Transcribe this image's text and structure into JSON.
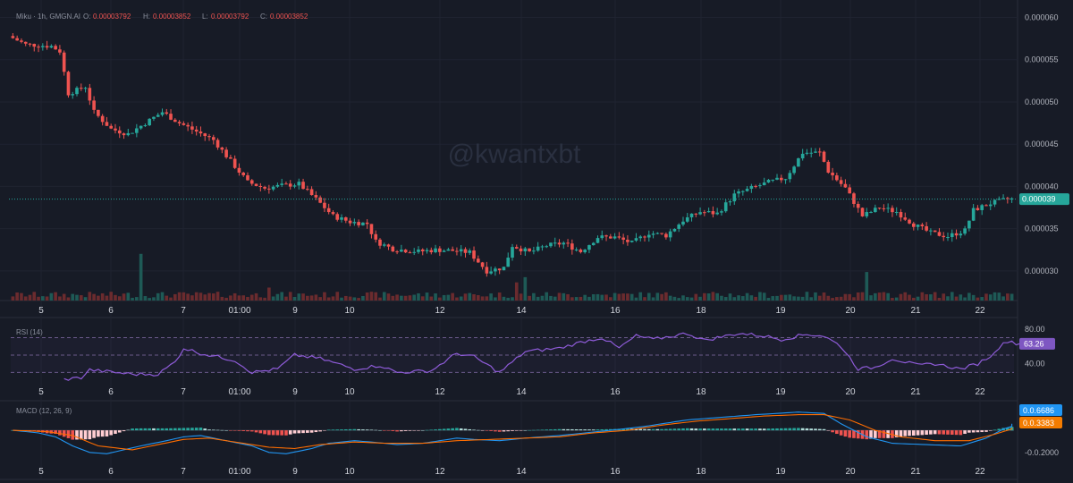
{
  "header": {
    "symbol_line": "Miku · 1h, GMGN.AI",
    "ohlc": [
      {
        "label": "O:",
        "value": "0.00003792"
      },
      {
        "label": "H:",
        "value": "0.00003852"
      },
      {
        "label": "L:",
        "value": "0.00003792"
      },
      {
        "label": "C:",
        "value": "0.00003852"
      }
    ]
  },
  "watermark": "@kwantxbt",
  "colors": {
    "background": "#171b26",
    "up": "#26a69a",
    "down": "#ef5350",
    "rsi_line": "#8e5bd8",
    "macd_line": "#2196f3",
    "signal_line": "#ff6d00",
    "price_badge": "#26a69a",
    "rsi_badge": "#7e57c2",
    "macd_badge": "#2196f3",
    "signal_badge": "#f57c00"
  },
  "time_axis": [
    "5",
    "6",
    "7",
    "01:00",
    "9",
    "10",
    "12",
    "14",
    "16",
    "18",
    "19",
    "20",
    "21",
    "22"
  ],
  "chart_data": [
    {
      "id": "price",
      "type": "candlestick",
      "y_ticks": [
        "0.000060",
        "0.000055",
        "0.000050",
        "0.000045",
        "0.000040",
        "0.000035",
        "0.000030"
      ],
      "ylim": [
        2.65e-05,
        6.1e-05
      ],
      "last_price_label": "0.000039",
      "last_price": 3.85e-05,
      "anchors": [
        [
          0,
          5.78e-05
        ],
        [
          4,
          5.68e-05
        ],
        [
          10,
          5.66e-05
        ],
        [
          12,
          5.6e-05
        ],
        [
          14,
          5.1e-05
        ],
        [
          18,
          5.18e-05
        ],
        [
          20,
          4.88e-05
        ],
        [
          24,
          4.68e-05
        ],
        [
          28,
          4.62e-05
        ],
        [
          32,
          4.75e-05
        ],
        [
          36,
          4.88e-05
        ],
        [
          40,
          4.75e-05
        ],
        [
          44,
          4.65e-05
        ],
        [
          48,
          4.55e-05
        ],
        [
          52,
          4.3e-05
        ],
        [
          56,
          4.05e-05
        ],
        [
          60,
          3.98e-05
        ],
        [
          64,
          4.01e-05
        ],
        [
          68,
          4.03e-05
        ],
        [
          72,
          3.85e-05
        ],
        [
          76,
          3.65e-05
        ],
        [
          80,
          3.58e-05
        ],
        [
          84,
          3.56e-05
        ],
        [
          86,
          3.35e-05
        ],
        [
          90,
          3.26e-05
        ],
        [
          96,
          3.23e-05
        ],
        [
          100,
          3.25e-05
        ],
        [
          104,
          3.24e-05
        ],
        [
          108,
          3.22e-05
        ],
        [
          112,
          3e-05
        ],
        [
          116,
          3.04e-05
        ],
        [
          118,
          3.3e-05
        ],
        [
          122,
          3.22e-05
        ],
        [
          126,
          3.3e-05
        ],
        [
          130,
          3.33e-05
        ],
        [
          134,
          3.23e-05
        ],
        [
          138,
          3.4e-05
        ],
        [
          142,
          3.4e-05
        ],
        [
          146,
          3.33e-05
        ],
        [
          150,
          3.45e-05
        ],
        [
          154,
          3.42e-05
        ],
        [
          158,
          3.6e-05
        ],
        [
          162,
          3.7e-05
        ],
        [
          166,
          3.68e-05
        ],
        [
          170,
          3.9e-05
        ],
        [
          174,
          3.98e-05
        ],
        [
          178,
          4.05e-05
        ],
        [
          182,
          4.1e-05
        ],
        [
          186,
          4.4e-05
        ],
        [
          190,
          4.4e-05
        ],
        [
          192,
          4.18e-05
        ],
        [
          196,
          3.98e-05
        ],
        [
          200,
          3.65e-05
        ],
        [
          204,
          3.75e-05
        ],
        [
          208,
          3.7e-05
        ],
        [
          212,
          3.55e-05
        ],
        [
          216,
          3.45e-05
        ],
        [
          220,
          3.41e-05
        ],
        [
          224,
          3.48e-05
        ],
        [
          226,
          3.72e-05
        ],
        [
          230,
          3.8e-05
        ],
        [
          234,
          3.85e-05
        ]
      ],
      "n_candles": 235,
      "volume_spikes": [
        [
          30,
          0.9
        ],
        [
          60,
          0.25
        ],
        [
          118,
          0.35
        ],
        [
          120,
          0.45
        ],
        [
          200,
          0.55
        ]
      ]
    },
    {
      "id": "rsi",
      "type": "line",
      "title": "RSI (14)",
      "y_ticks": [
        "80.00",
        "40.00"
      ],
      "ylim": [
        16,
        86
      ],
      "last_value_label": "63.26",
      "anchors": [
        [
          12,
          22
        ],
        [
          16,
          24
        ],
        [
          18,
          33
        ],
        [
          24,
          30
        ],
        [
          28,
          28
        ],
        [
          34,
          28
        ],
        [
          38,
          42
        ],
        [
          40,
          58
        ],
        [
          44,
          52
        ],
        [
          52,
          44
        ],
        [
          56,
          30
        ],
        [
          62,
          34
        ],
        [
          66,
          50
        ],
        [
          72,
          46
        ],
        [
          80,
          34
        ],
        [
          86,
          38
        ],
        [
          90,
          30
        ],
        [
          98,
          32
        ],
        [
          104,
          52
        ],
        [
          108,
          48
        ],
        [
          114,
          30
        ],
        [
          120,
          54
        ],
        [
          128,
          58
        ],
        [
          134,
          66
        ],
        [
          138,
          70
        ],
        [
          142,
          58
        ],
        [
          146,
          72
        ],
        [
          150,
          68
        ],
        [
          158,
          75
        ],
        [
          162,
          67
        ],
        [
          170,
          75
        ],
        [
          176,
          72
        ],
        [
          180,
          68
        ],
        [
          186,
          74
        ],
        [
          190,
          72
        ],
        [
          194,
          60
        ],
        [
          198,
          34
        ],
        [
          202,
          36
        ],
        [
          206,
          46
        ],
        [
          212,
          38
        ],
        [
          216,
          40
        ],
        [
          222,
          34
        ],
        [
          226,
          40
        ],
        [
          230,
          52
        ],
        [
          232,
          66
        ],
        [
          236,
          63
        ]
      ]
    },
    {
      "id": "macd",
      "type": "line+histogram",
      "title": "MACD (12, 26, 9)",
      "y_ticks": [
        "-0.0.2000"
      ],
      "ylim": [
        -0.24,
        0.2
      ],
      "macd_label": "0.0.6686",
      "signal_label": "0.0.3383",
      "macd_anchors": [
        [
          0,
          0.0
        ],
        [
          6,
          -0.02
        ],
        [
          10,
          -0.05
        ],
        [
          14,
          -0.12
        ],
        [
          18,
          -0.17
        ],
        [
          22,
          -0.18
        ],
        [
          26,
          -0.15
        ],
        [
          30,
          -0.12
        ],
        [
          36,
          -0.08
        ],
        [
          40,
          -0.05
        ],
        [
          44,
          -0.04
        ],
        [
          50,
          -0.08
        ],
        [
          56,
          -0.12
        ],
        [
          60,
          -0.17
        ],
        [
          64,
          -0.18
        ],
        [
          70,
          -0.14
        ],
        [
          74,
          -0.1
        ],
        [
          80,
          -0.08
        ],
        [
          84,
          -0.09
        ],
        [
          90,
          -0.11
        ],
        [
          96,
          -0.1
        ],
        [
          104,
          -0.06
        ],
        [
          108,
          -0.07
        ],
        [
          114,
          -0.08
        ],
        [
          120,
          -0.06
        ],
        [
          128,
          -0.04
        ],
        [
          134,
          -0.02
        ],
        [
          140,
          0.0
        ],
        [
          148,
          0.03
        ],
        [
          158,
          0.08
        ],
        [
          166,
          0.1
        ],
        [
          174,
          0.12
        ],
        [
          184,
          0.14
        ],
        [
          190,
          0.13
        ],
        [
          194,
          0.05
        ],
        [
          200,
          -0.05
        ],
        [
          206,
          -0.1
        ],
        [
          214,
          -0.11
        ],
        [
          222,
          -0.12
        ],
        [
          228,
          -0.06
        ],
        [
          232,
          0.01
        ],
        [
          236,
          0.05
        ]
      ],
      "signal_anchors": [
        [
          0,
          0.0
        ],
        [
          8,
          -0.01
        ],
        [
          14,
          -0.04
        ],
        [
          20,
          -0.12
        ],
        [
          28,
          -0.15
        ],
        [
          34,
          -0.11
        ],
        [
          40,
          -0.07
        ],
        [
          46,
          -0.06
        ],
        [
          52,
          -0.09
        ],
        [
          60,
          -0.13
        ],
        [
          66,
          -0.14
        ],
        [
          72,
          -0.11
        ],
        [
          80,
          -0.09
        ],
        [
          88,
          -0.1
        ],
        [
          96,
          -0.1
        ],
        [
          104,
          -0.08
        ],
        [
          112,
          -0.07
        ],
        [
          120,
          -0.06
        ],
        [
          128,
          -0.05
        ],
        [
          136,
          -0.02
        ],
        [
          144,
          0.0
        ],
        [
          152,
          0.04
        ],
        [
          160,
          0.07
        ],
        [
          168,
          0.09
        ],
        [
          176,
          0.11
        ],
        [
          184,
          0.12
        ],
        [
          190,
          0.12
        ],
        [
          196,
          0.08
        ],
        [
          202,
          0.0
        ],
        [
          208,
          -0.05
        ],
        [
          216,
          -0.08
        ],
        [
          224,
          -0.08
        ],
        [
          230,
          -0.03
        ],
        [
          234,
          0.01
        ],
        [
          236,
          0.02
        ]
      ]
    }
  ]
}
